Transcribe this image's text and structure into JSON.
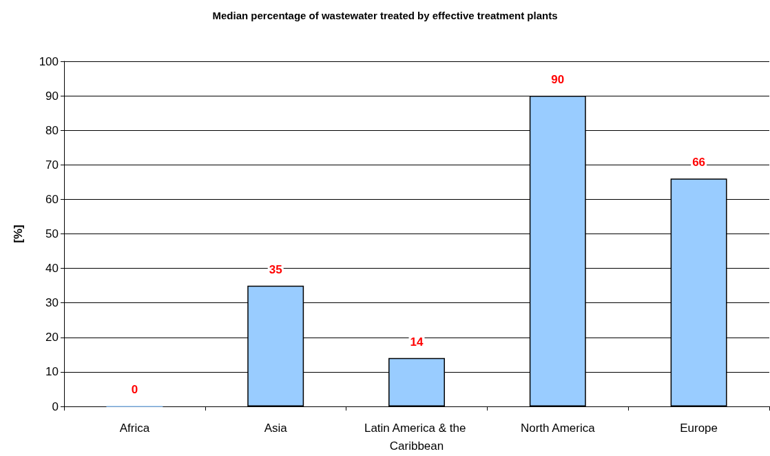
{
  "chart_data": {
    "type": "bar",
    "title": "Median percentage of wastewater treated by effective treatment plants",
    "ylabel": "[%]",
    "categories": [
      "Africa",
      "Asia",
      "Latin America & the Caribbean",
      "North America",
      "Europe"
    ],
    "values": [
      0,
      35,
      14,
      90,
      66
    ],
    "color": "#99ccff",
    "ylim": [
      0,
      100
    ],
    "yticks": [
      0,
      10,
      20,
      30,
      40,
      50,
      60,
      70,
      80,
      90,
      100
    ],
    "grid": "y",
    "data_labels": true
  }
}
